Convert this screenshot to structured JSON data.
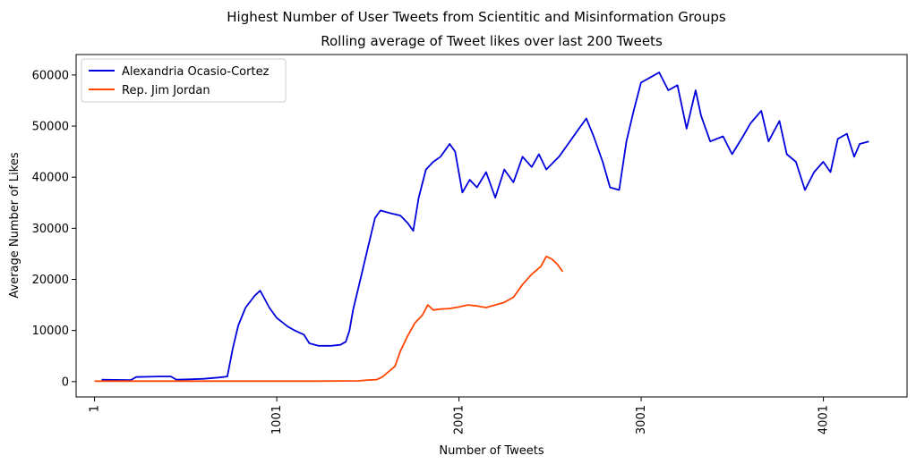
{
  "chart_data": {
    "type": "line",
    "suptitle": "Highest Number of User Tweets from Scientitic and Misinformation Groups",
    "title": "Rolling average of Tweet likes over last 200 Tweets",
    "xlabel": "Number of Tweets",
    "ylabel": "Average Number of Likes",
    "xlim": [
      -100,
      4460
    ],
    "ylim": [
      -3000,
      64000
    ],
    "xticks": [
      1,
      1001,
      2001,
      3001,
      4001
    ],
    "xtick_labels": [
      "1",
      "1001",
      "2001",
      "3001",
      "4001"
    ],
    "yticks": [
      0,
      10000,
      20000,
      30000,
      40000,
      50000,
      60000
    ],
    "ytick_labels": [
      "0",
      "10000",
      "20000",
      "30000",
      "40000",
      "50000",
      "60000"
    ],
    "grid": false,
    "legend": "top-left",
    "series": [
      {
        "name": "Alexandria Ocasio-Cortez",
        "color": "#0000dd",
        "points": [
          [
            40,
            400
          ],
          [
            100,
            350
          ],
          [
            200,
            300
          ],
          [
            230,
            900
          ],
          [
            300,
            950
          ],
          [
            350,
            1000
          ],
          [
            420,
            1000
          ],
          [
            450,
            400
          ],
          [
            520,
            450
          ],
          [
            600,
            550
          ],
          [
            680,
            800
          ],
          [
            730,
            1000
          ],
          [
            760,
            6500
          ],
          [
            790,
            11000
          ],
          [
            830,
            14500
          ],
          [
            880,
            16800
          ],
          [
            910,
            17800
          ],
          [
            930,
            16500
          ],
          [
            960,
            14500
          ],
          [
            1000,
            12500
          ],
          [
            1060,
            10800
          ],
          [
            1100,
            10000
          ],
          [
            1150,
            9200
          ],
          [
            1180,
            7500
          ],
          [
            1230,
            7000
          ],
          [
            1300,
            7000
          ],
          [
            1350,
            7200
          ],
          [
            1380,
            7800
          ],
          [
            1400,
            10000
          ],
          [
            1420,
            14000
          ],
          [
            1460,
            20000
          ],
          [
            1500,
            26000
          ],
          [
            1540,
            32000
          ],
          [
            1570,
            33500
          ],
          [
            1620,
            33000
          ],
          [
            1680,
            32500
          ],
          [
            1720,
            31000
          ],
          [
            1750,
            29500
          ],
          [
            1780,
            36000
          ],
          [
            1820,
            41500
          ],
          [
            1860,
            43000
          ],
          [
            1900,
            44000
          ],
          [
            1950,
            46500
          ],
          [
            1980,
            45000
          ],
          [
            2020,
            37000
          ],
          [
            2060,
            39500
          ],
          [
            2100,
            38000
          ],
          [
            2150,
            41000
          ],
          [
            2200,
            36000
          ],
          [
            2250,
            41500
          ],
          [
            2300,
            39000
          ],
          [
            2350,
            44000
          ],
          [
            2400,
            42000
          ],
          [
            2440,
            44500
          ],
          [
            2480,
            41500
          ],
          [
            2550,
            44000
          ],
          [
            2600,
            46500
          ],
          [
            2650,
            49000
          ],
          [
            2700,
            51500
          ],
          [
            2740,
            48000
          ],
          [
            2790,
            43000
          ],
          [
            2830,
            38000
          ],
          [
            2880,
            37500
          ],
          [
            2920,
            47000
          ],
          [
            2960,
            53000
          ],
          [
            3000,
            58500
          ],
          [
            3050,
            59500
          ],
          [
            3100,
            60500
          ],
          [
            3150,
            57000
          ],
          [
            3200,
            58000
          ],
          [
            3250,
            49500
          ],
          [
            3300,
            57000
          ],
          [
            3330,
            52000
          ],
          [
            3380,
            47000
          ],
          [
            3450,
            48000
          ],
          [
            3500,
            44500
          ],
          [
            3560,
            48000
          ],
          [
            3600,
            50500
          ],
          [
            3660,
            53000
          ],
          [
            3700,
            47000
          ],
          [
            3760,
            51000
          ],
          [
            3800,
            44500
          ],
          [
            3850,
            43000
          ],
          [
            3900,
            37500
          ],
          [
            3950,
            41000
          ],
          [
            4000,
            43000
          ],
          [
            4040,
            41000
          ],
          [
            4080,
            47500
          ],
          [
            4130,
            48500
          ],
          [
            4170,
            44000
          ],
          [
            4200,
            46500
          ],
          [
            4250,
            47000
          ]
        ]
      },
      {
        "name": "Rep. Jim Jordan",
        "color": "#ff4500",
        "points": [
          [
            1,
            100
          ],
          [
            300,
            100
          ],
          [
            600,
            100
          ],
          [
            900,
            100
          ],
          [
            1200,
            100
          ],
          [
            1450,
            150
          ],
          [
            1500,
            300
          ],
          [
            1550,
            400
          ],
          [
            1580,
            900
          ],
          [
            1610,
            1800
          ],
          [
            1650,
            3000
          ],
          [
            1680,
            6000
          ],
          [
            1720,
            9000
          ],
          [
            1760,
            11500
          ],
          [
            1800,
            13000
          ],
          [
            1830,
            15000
          ],
          [
            1860,
            14000
          ],
          [
            1900,
            14200
          ],
          [
            1950,
            14300
          ],
          [
            2000,
            14600
          ],
          [
            2050,
            15000
          ],
          [
            2100,
            14800
          ],
          [
            2150,
            14500
          ],
          [
            2200,
            15000
          ],
          [
            2250,
            15500
          ],
          [
            2300,
            16500
          ],
          [
            2350,
            19000
          ],
          [
            2400,
            21000
          ],
          [
            2450,
            22500
          ],
          [
            2480,
            24500
          ],
          [
            2510,
            24000
          ],
          [
            2540,
            23000
          ],
          [
            2570,
            21500
          ]
        ]
      }
    ]
  }
}
